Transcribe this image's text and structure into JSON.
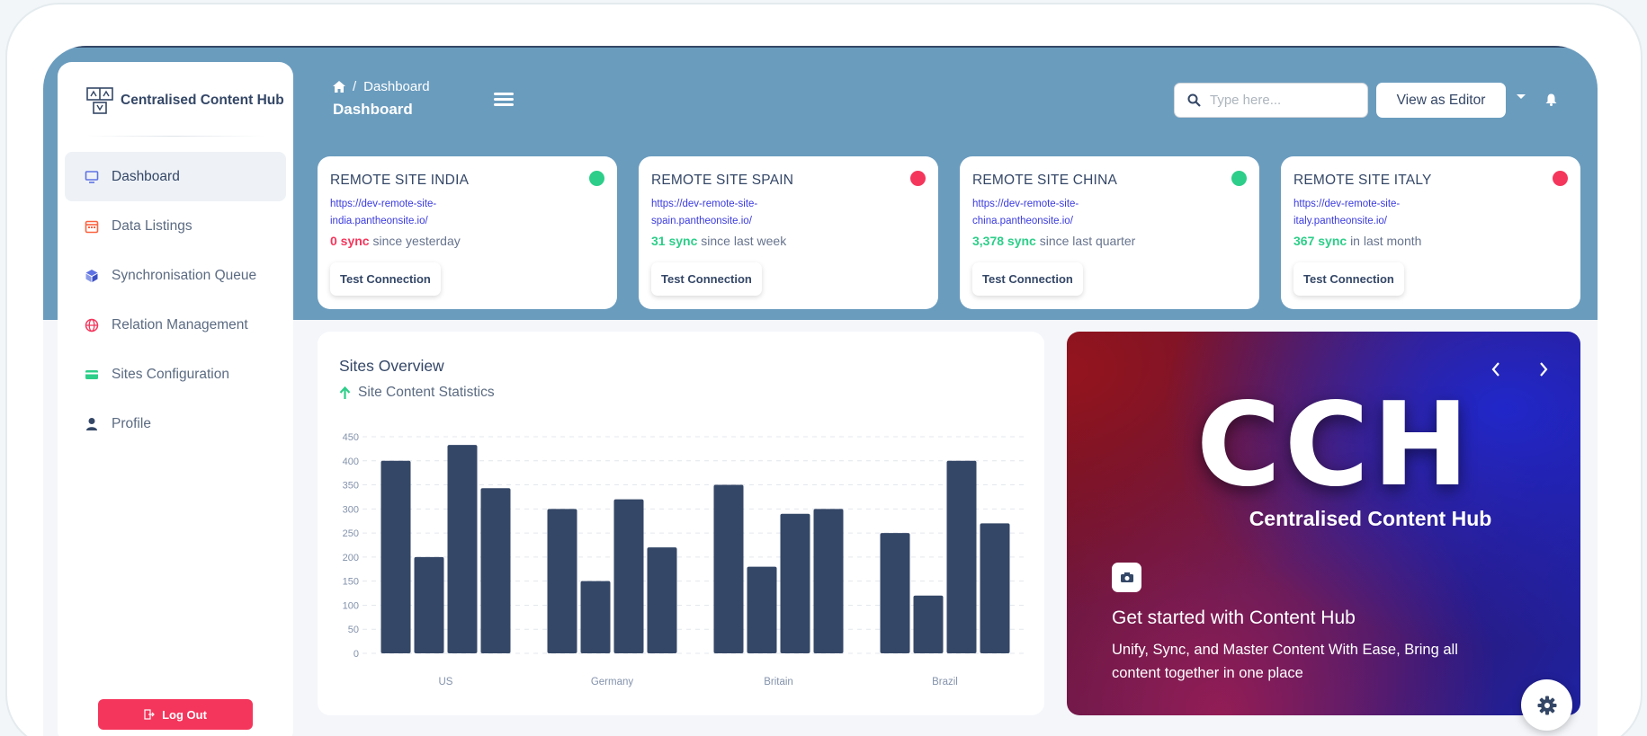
{
  "app": {
    "brand": "Centralised Content Hub"
  },
  "sidebar": {
    "items": [
      {
        "label": "Dashboard",
        "icon": "monitor-icon",
        "color": "#344767"
      },
      {
        "label": "Data Listings",
        "icon": "calendar-icon",
        "color": "#fb6340"
      },
      {
        "label": "Synchronisation Queue",
        "icon": "box-icon",
        "color": "#5e72e4"
      },
      {
        "label": "Relation Management",
        "icon": "globe-icon",
        "color": "#f5365c"
      },
      {
        "label": "Sites Configuration",
        "icon": "card-icon",
        "color": "#2dce89"
      },
      {
        "label": "Profile",
        "icon": "user-icon",
        "color": "#344767"
      }
    ],
    "logout_label": "Log Out"
  },
  "header": {
    "breadcrumb": "Dashboard",
    "page_title": "Dashboard",
    "search_placeholder": "Type here...",
    "view_as_editor": "View as Editor"
  },
  "sites": [
    {
      "title": "REMOTE SITE INDIA",
      "url_line1": "https://dev-remote-site-",
      "url_line2": "india.pantheonsite.io/",
      "sync_count": "0 sync",
      "sync_since": "since yesterday",
      "count_color": "#f5365c",
      "status_color": "#2dce89",
      "button": "Test Connection"
    },
    {
      "title": "REMOTE SITE SPAIN",
      "url_line1": "https://dev-remote-site-",
      "url_line2": "spain.pantheonsite.io/",
      "sync_count": "31 sync",
      "sync_since": "since last week",
      "count_color": "#2dce89",
      "status_color": "#f5365c",
      "button": "Test Connection"
    },
    {
      "title": "REMOTE SITE CHINA",
      "url_line1": "https://dev-remote-site-",
      "url_line2": "china.pantheonsite.io/",
      "sync_count": "3,378 sync",
      "sync_since": "since last quarter",
      "count_color": "#2dce89",
      "status_color": "#2dce89",
      "button": "Test Connection"
    },
    {
      "title": "REMOTE SITE ITALY",
      "url_line1": "https://dev-remote-site-",
      "url_line2": "italy.pantheonsite.io/",
      "sync_count": "367 sync",
      "sync_since": "in last month",
      "count_color": "#2dce89",
      "status_color": "#f5365c",
      "button": "Test Connection"
    }
  ],
  "overview": {
    "title": "Sites Overview",
    "subtitle": "Site Content Statistics"
  },
  "chart_data": {
    "type": "bar",
    "categories": [
      "US",
      "Germany",
      "Britain",
      "Brazil"
    ],
    "series": [
      {
        "values": [
          400,
          300,
          350,
          250
        ]
      },
      {
        "values": [
          200,
          150,
          180,
          120
        ]
      },
      {
        "values": [
          433,
          320,
          290,
          400
        ]
      },
      {
        "values": [
          343,
          220,
          300,
          270
        ]
      }
    ],
    "ylim": [
      0,
      450
    ],
    "yticks": [
      0,
      50,
      100,
      150,
      200,
      250,
      300,
      350,
      400,
      450
    ],
    "bar_color": "#344767",
    "grid": true
  },
  "promo": {
    "big_text": "CCH",
    "big_subtitle": "Centralised Content Hub",
    "title": "Get started with Content Hub",
    "text": "Unify, Sync, and Master Content With Ease, Bring all content together in one place"
  }
}
